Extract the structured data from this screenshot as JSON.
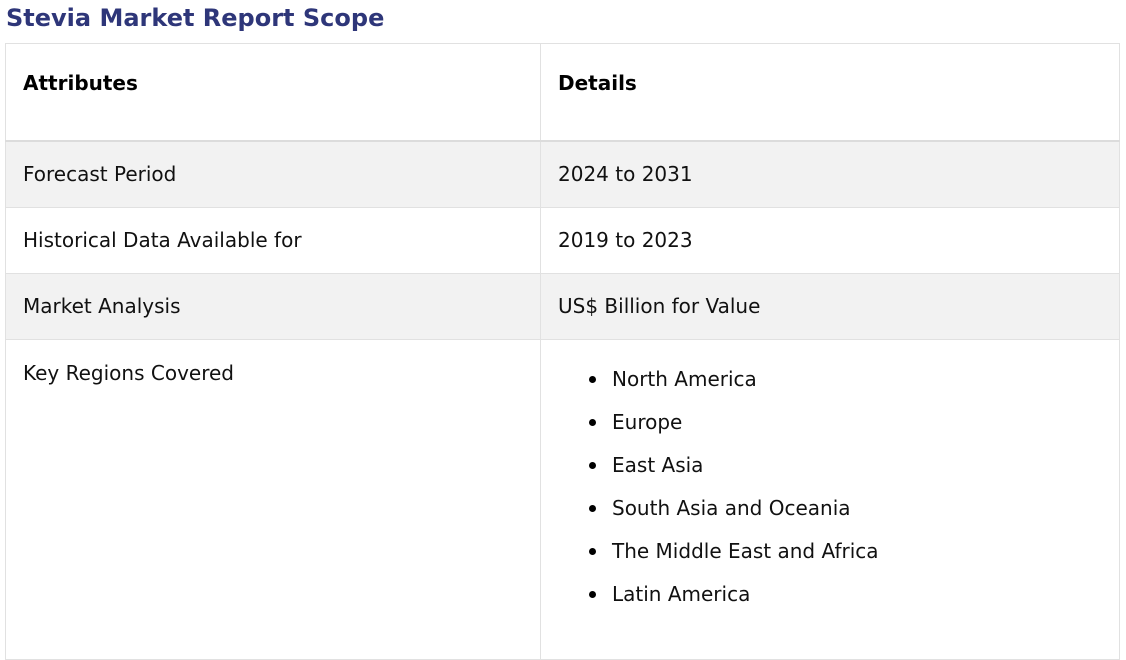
{
  "title": "Stevia Market Report Scope",
  "table": {
    "headers": {
      "attributes": "Attributes",
      "details": "Details"
    },
    "rows": [
      {
        "attribute": "Forecast Period",
        "detail": "2024 to 2031"
      },
      {
        "attribute": "Historical Data Available for",
        "detail": "2019 to 2023"
      },
      {
        "attribute": "Market Analysis",
        "detail": "US$ Billion for Value"
      }
    ],
    "regions": {
      "attribute": "Key Regions Covered",
      "items": [
        "North America",
        "Europe",
        "East Asia",
        "South Asia and Oceania",
        "The Middle East and Africa",
        "Latin America"
      ]
    }
  },
  "colors": {
    "title": "#2e3679",
    "shaded_row": "#f2f2f2",
    "border": "#e1e1e1"
  }
}
